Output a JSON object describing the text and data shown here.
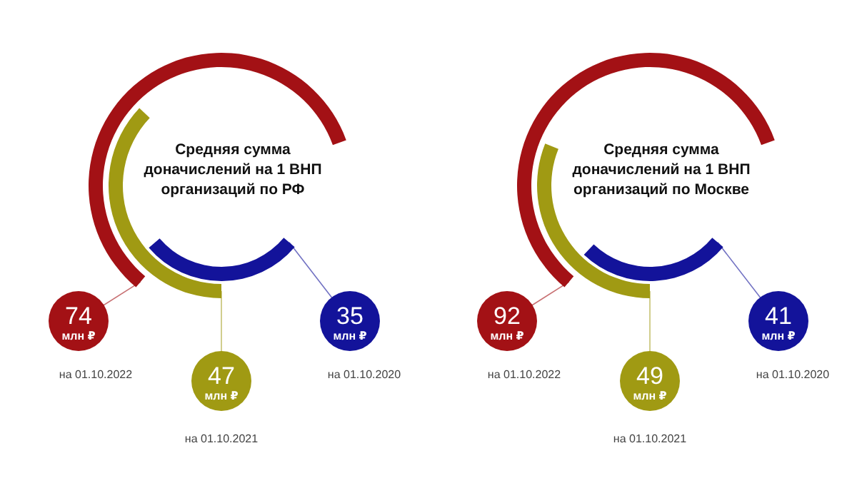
{
  "chart_data": [
    {
      "type": "other",
      "title": "Средняя сумма доначислений на 1 ВНП организаций по РФ",
      "categories": [
        "на 01.10.2022",
        "на 01.10.2021",
        "на 01.10.2020"
      ],
      "values": [
        74,
        47,
        35
      ],
      "colors": [
        "#a31115",
        "#a09a13",
        "#13139a"
      ],
      "value_labels": [
        "74 млн ₽",
        "47 млн ₽",
        "35 млн ₽"
      ]
    },
    {
      "type": "other",
      "title": "Средняя сумма доначислений на 1 ВНП организаций по Москве",
      "categories": [
        "на 01.10.2022",
        "на 01.10.2021",
        "на 01.10.2020"
      ],
      "values": [
        92,
        49,
        41
      ],
      "colors": [
        "#a31115",
        "#a09a13",
        "#13139a"
      ],
      "value_labels": [
        "92 млн ₽",
        "49 млн ₽",
        "41 млн ₽"
      ]
    }
  ]
}
